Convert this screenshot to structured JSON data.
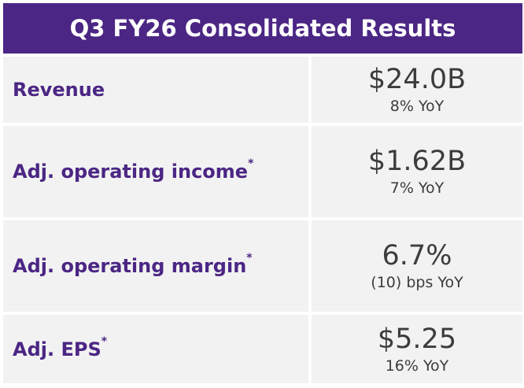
{
  "title": "Q3 FY26 Consolidated Results",
  "rows": [
    {
      "label": "Revenue",
      "footnote": "",
      "value": "$24.0B",
      "change": "8% YoY"
    },
    {
      "label": "Adj. operating income",
      "footnote": "*",
      "value": "$1.62B",
      "change": "7% YoY"
    },
    {
      "label": "Adj. operating margin",
      "footnote": "*",
      "value": "6.7%",
      "change": "(10) bps YoY"
    },
    {
      "label": "Adj. EPS",
      "footnote": "*",
      "value": "$5.25",
      "change": "16% YoY"
    }
  ],
  "colors": {
    "header_bg": "#4b2684",
    "label_text": "#4b2684",
    "cell_bg": "#f2f2f2",
    "value_text": "#3c3c3c"
  }
}
